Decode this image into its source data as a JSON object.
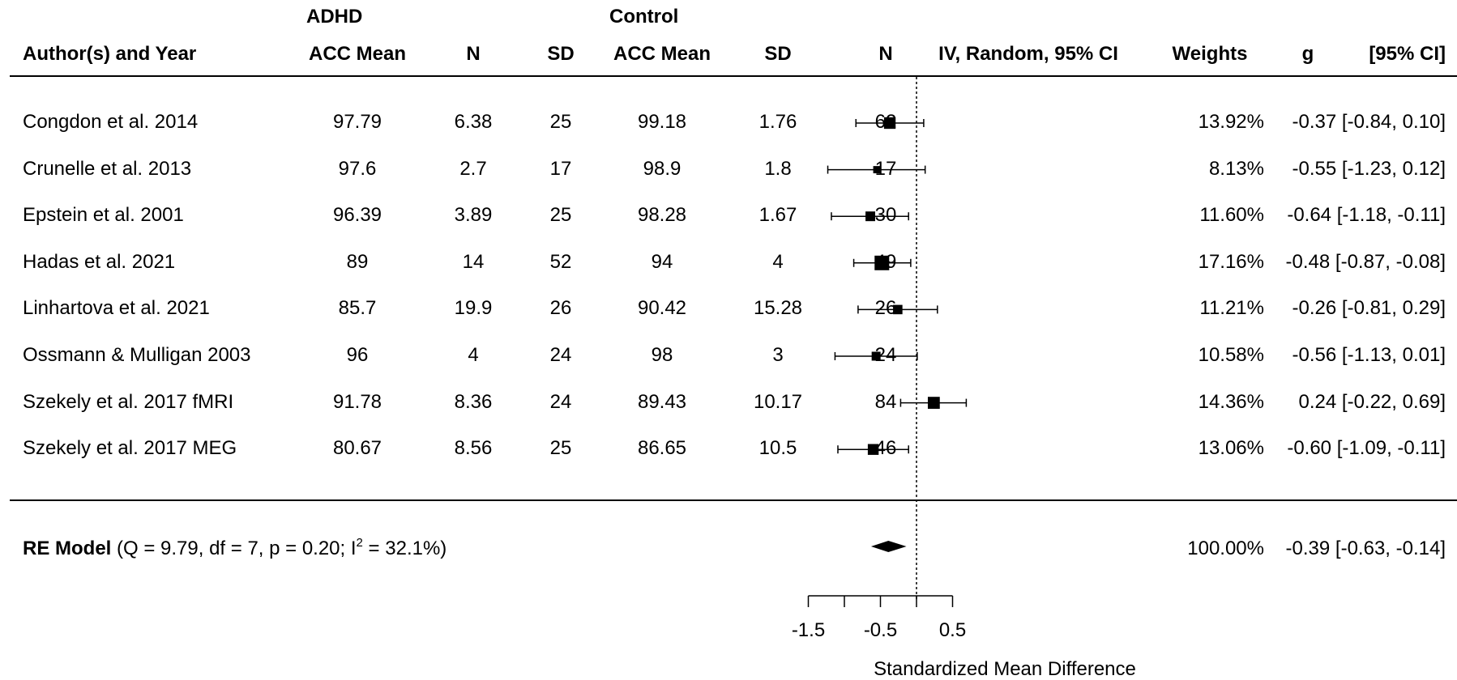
{
  "chart_data": {
    "type": "forest",
    "header": {
      "group_adhd": "ADHD",
      "group_control": "Control",
      "study": "Author(s) and Year",
      "adhd_mean": "ACC Mean",
      "adhd_n": "N",
      "adhd_sd": "SD",
      "ctrl_mean": "ACC Mean",
      "ctrl_sd": "SD",
      "ctrl_n": "N",
      "ci_method": "IV, Random, 95% CI",
      "weights": "Weights",
      "g": "g",
      "ci": "[95% CI]"
    },
    "studies": [
      {
        "name": "Congdon et al. 2014",
        "adhd_mean": "97.79",
        "adhd_n": "6.38",
        "adhd_sd": "25",
        "ctrl_mean": "99.18",
        "ctrl_sd": "1.76",
        "ctrl_n": "62",
        "weight": "13.92%",
        "ci_text": "-0.37 [-0.84,  0.10]",
        "g": -0.37,
        "lo": -0.84,
        "hi": 0.1,
        "w": 13.92
      },
      {
        "name": "Crunelle et al. 2013",
        "adhd_mean": "97.6",
        "adhd_n": "2.7",
        "adhd_sd": "17",
        "ctrl_mean": "98.9",
        "ctrl_sd": "1.8",
        "ctrl_n": "17",
        "weight": "8.13%",
        "ci_text": "-0.55 [-1.23,  0.12]",
        "g": -0.55,
        "lo": -1.23,
        "hi": 0.12,
        "w": 8.13
      },
      {
        "name": "Epstein et al. 2001",
        "adhd_mean": "96.39",
        "adhd_n": "3.89",
        "adhd_sd": "25",
        "ctrl_mean": "98.28",
        "ctrl_sd": "1.67",
        "ctrl_n": "30",
        "weight": "11.60%",
        "ci_text": "-0.64 [-1.18, -0.11]",
        "g": -0.64,
        "lo": -1.18,
        "hi": -0.11,
        "w": 11.6
      },
      {
        "name": "Hadas et al. 2021",
        "adhd_mean": "89",
        "adhd_n": "14",
        "adhd_sd": "52",
        "ctrl_mean": "94",
        "ctrl_sd": "4",
        "ctrl_n": "49",
        "weight": "17.16%",
        "ci_text": "-0.48 [-0.87, -0.08]",
        "g": -0.48,
        "lo": -0.87,
        "hi": -0.08,
        "w": 17.16
      },
      {
        "name": "Linhartova et al. 2021",
        "adhd_mean": "85.7",
        "adhd_n": "19.9",
        "adhd_sd": "26",
        "ctrl_mean": "90.42",
        "ctrl_sd": "15.28",
        "ctrl_n": "26",
        "weight": "11.21%",
        "ci_text": "-0.26 [-0.81,  0.29]",
        "g": -0.26,
        "lo": -0.81,
        "hi": 0.29,
        "w": 11.21
      },
      {
        "name": "Ossmann & Mulligan 2003",
        "adhd_mean": "96",
        "adhd_n": "4",
        "adhd_sd": "24",
        "ctrl_mean": "98",
        "ctrl_sd": "3",
        "ctrl_n": "24",
        "weight": "10.58%",
        "ci_text": "-0.56 [-1.13,  0.01]",
        "g": -0.56,
        "lo": -1.13,
        "hi": 0.01,
        "w": 10.58
      },
      {
        "name": "Szekely et al. 2017 fMRI",
        "adhd_mean": "91.78",
        "adhd_n": "8.36",
        "adhd_sd": "24",
        "ctrl_mean": "89.43",
        "ctrl_sd": "10.17",
        "ctrl_n": "84",
        "weight": "14.36%",
        "ci_text": "0.24 [-0.22,  0.69]",
        "g": 0.24,
        "lo": -0.22,
        "hi": 0.69,
        "w": 14.36
      },
      {
        "name": "Szekely et al. 2017 MEG",
        "adhd_mean": "80.67",
        "adhd_n": "8.56",
        "adhd_sd": "25",
        "ctrl_mean": "86.65",
        "ctrl_sd": "10.5",
        "ctrl_n": "46",
        "weight": "13.06%",
        "ci_text": "-0.60 [-1.09, -0.11]",
        "g": -0.6,
        "lo": -1.09,
        "hi": -0.11,
        "w": 13.06
      }
    ],
    "summary": {
      "label_bold": "RE Model",
      "stats_pre": " (Q = 9.79, df = 7, p = 0.20; I",
      "stats_sup": "2",
      "stats_post": " = 32.1%)",
      "weight": "100.00%",
      "ci_text": "-0.39 [-0.63, -0.14]",
      "g": -0.39,
      "lo": -0.63,
      "hi": -0.14
    },
    "x_axis": {
      "label": "Standardized Mean Difference",
      "ticks": [
        -1.5,
        -1.0,
        -0.5,
        0.0,
        0.5
      ],
      "tick_labels": [
        "-1.5",
        "",
        "-0.5",
        "",
        "0.5"
      ],
      "range": [
        -1.5,
        0.5
      ],
      "reference_line": 0
    }
  }
}
